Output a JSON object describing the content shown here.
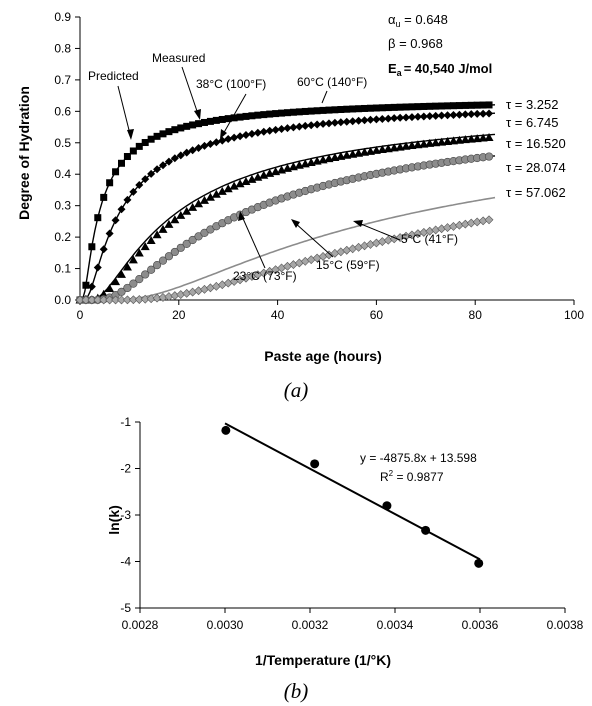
{
  "chart_data": [
    {
      "panel": "(a)",
      "type": "scatter",
      "xlabel": "Paste age (hours)",
      "ylabel": "Degree of Hydration",
      "xlim": [
        0,
        100
      ],
      "ylim": [
        0,
        0.9
      ],
      "xticks": [
        "0",
        "20",
        "40",
        "60",
        "80",
        "100"
      ],
      "yticks": [
        "0.0",
        "0.1",
        "0.2",
        "0.3",
        "0.4",
        "0.5",
        "0.6",
        "0.7",
        "0.8",
        "0.9"
      ],
      "grid": false,
      "parameters": {
        "alpha_label": "α",
        "alpha_sub": "u",
        "alpha_value": " = 0.648",
        "beta": "β = 0.968",
        "ea_label": "E",
        "ea_sub": "a",
        "ea_value": "= 40,540 J/mol"
      },
      "annotations": {
        "predicted": "Predicted",
        "measured": "Measured"
      },
      "series": [
        {
          "temp_label": "60°C (140°F)",
          "tau_label": "τ = 3.252",
          "marker": "square",
          "color": "#000000",
          "tau": 3.252
        },
        {
          "temp_label": "38°C (100°F)",
          "tau_label": "τ = 6.745",
          "marker": "diamond",
          "color": "#000000",
          "tau": 6.745
        },
        {
          "temp_label": "23°C (73°F)",
          "tau_label": "τ = 16.520",
          "marker": "triangle",
          "color": "#000000",
          "tau": 16.52
        },
        {
          "temp_label": "15°C (59°F)",
          "tau_label": "τ = 28.074",
          "marker": "circle",
          "color": "#8c8c8c",
          "tau": 28.074
        },
        {
          "temp_label": "5°C (41°F)",
          "tau_label": "τ = 57.062",
          "marker": "diamond",
          "color": "#a6a6a6",
          "tau": 57.062
        }
      ]
    },
    {
      "panel": "(b)",
      "type": "scatter",
      "xlabel": "1/Temperature   (1/°K)",
      "ylabel": "ln(k)",
      "xlim": [
        0.0028,
        0.0038
      ],
      "ylim": [
        -5,
        -1
      ],
      "xticks": [
        "0.0028",
        "0.0030",
        "0.0032",
        "0.0034",
        "0.0036",
        "0.0038"
      ],
      "yticks": [
        "-1",
        "-2",
        "-3",
        "-4",
        "-5"
      ],
      "grid": false,
      "points": [
        {
          "x": 0.003002,
          "y": -1.18
        },
        {
          "x": 0.003211,
          "y": -1.9
        },
        {
          "x": 0.003381,
          "y": -2.8
        },
        {
          "x": 0.003472,
          "y": -3.33
        },
        {
          "x": 0.003597,
          "y": -4.04
        }
      ],
      "fit": {
        "slope": -4875.8,
        "intercept": 13.598,
        "x_range": [
          0.003,
          0.0036
        ]
      },
      "equation": "y = -4875.8x + 13.598",
      "r2_label": "R",
      "r2_sup": "2",
      "r2_value": " = 0.9877"
    }
  ],
  "captions": {
    "a": "(a)",
    "b": "(b)"
  }
}
